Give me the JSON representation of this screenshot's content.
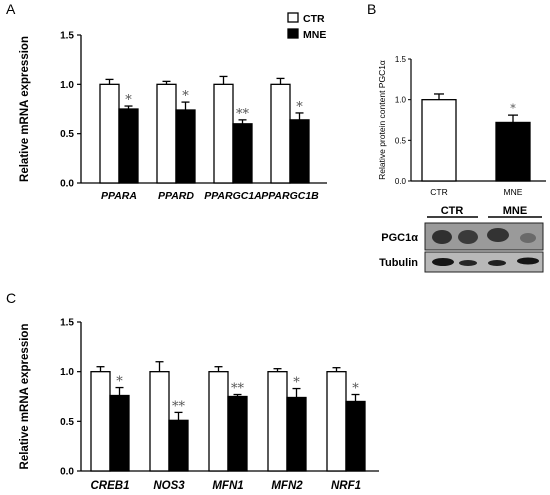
{
  "colors": {
    "ctr": "#ffffff",
    "mne": "#000000",
    "stroke": "#000000",
    "significance": "#555555",
    "blot_bg": "#9a9a9a"
  },
  "panels": {
    "A": {
      "letter": "A"
    },
    "B": {
      "letter": "B",
      "blot_labels": {
        "protein": "PGC1α",
        "loading": "Tubulin"
      },
      "blot_groups": [
        "CTR",
        "MNE"
      ]
    },
    "C": {
      "letter": "C"
    }
  },
  "chart_data": [
    {
      "id": "A",
      "type": "bar",
      "ylabel": "Relative mRNA expression",
      "xlabel": "",
      "ylim": [
        0,
        1.5
      ],
      "yticks": [
        "0.0",
        "0.5",
        "1.0",
        "1.5"
      ],
      "ytick_values": [
        0,
        0.5,
        1.0,
        1.5
      ],
      "categories": [
        "PPARA",
        "PPARD",
        "PPARGC1A",
        "PPARGC1B"
      ],
      "series": [
        {
          "name": "CTR",
          "values": [
            1.0,
            1.0,
            1.0,
            1.0
          ],
          "errors": [
            0.05,
            0.03,
            0.08,
            0.06
          ]
        },
        {
          "name": "MNE",
          "values": [
            0.75,
            0.74,
            0.6,
            0.64
          ],
          "errors": [
            0.03,
            0.08,
            0.04,
            0.07
          ]
        }
      ],
      "significance": [
        "*",
        "*",
        "**",
        "*"
      ],
      "legend": [
        "CTR",
        "MNE"
      ]
    },
    {
      "id": "B",
      "type": "bar",
      "ylabel": "Relative protein content PGC1α",
      "xlabel": "",
      "ylim": [
        0,
        1.5
      ],
      "yticks": [
        "0.0",
        "0.5",
        "1.0",
        "1.5"
      ],
      "ytick_values": [
        0,
        0.5,
        1.0,
        1.5
      ],
      "categories": [
        "CTR",
        "MNE"
      ],
      "values": [
        1.0,
        0.72
      ],
      "errors": [
        0.07,
        0.09
      ],
      "significance": [
        "",
        "*"
      ]
    },
    {
      "id": "C",
      "type": "bar",
      "ylabel": "Relative mRNA expression",
      "xlabel": "",
      "ylim": [
        0,
        1.5
      ],
      "yticks": [
        "0.0",
        "0.5",
        "1.0",
        "1.5"
      ],
      "ytick_values": [
        0,
        0.5,
        1.0,
        1.5
      ],
      "categories": [
        "CREB1",
        "NOS3",
        "MFN1",
        "MFN2",
        "NRF1"
      ],
      "series": [
        {
          "name": "CTR",
          "values": [
            1.0,
            1.0,
            1.0,
            1.0,
            1.0
          ],
          "errors": [
            0.05,
            0.1,
            0.05,
            0.03,
            0.04
          ]
        },
        {
          "name": "MNE",
          "values": [
            0.76,
            0.51,
            0.75,
            0.74,
            0.7
          ],
          "errors": [
            0.08,
            0.08,
            0.02,
            0.09,
            0.07
          ]
        }
      ],
      "significance": [
        "*",
        "**",
        "**",
        "*",
        "*"
      ]
    }
  ]
}
